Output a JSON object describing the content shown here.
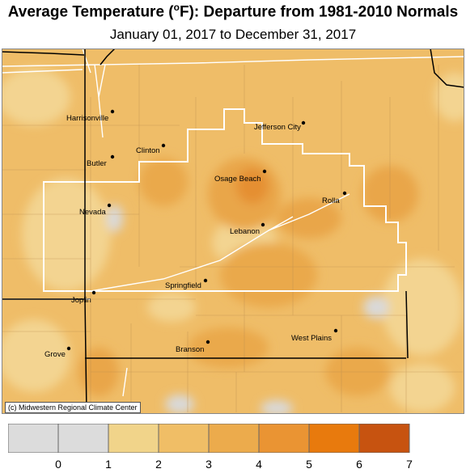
{
  "title_text": "Average Temperature (",
  "title_degree": "o",
  "title_rest": "F): Departure from 1981-2010 Normals",
  "subtitle": "January 01, 2017 to December 31, 2017",
  "copyright": "(c) Midwestern Regional Climate Center",
  "cities": [
    "Harrisonville",
    "Clinton",
    "Butler",
    "Jefferson City",
    "Osage Beach",
    "Nevada",
    "Rolla",
    "Lebanon",
    "Joplin",
    "Springfield",
    "Grove",
    "Branson",
    "West Plains"
  ],
  "legend": {
    "tick_labels": [
      "0",
      "1",
      "2",
      "3",
      "4",
      "5",
      "6",
      "7"
    ],
    "colors": [
      "#dcdcdc",
      "#dcdcdc",
      "#f1d48a",
      "#f0be66",
      "#ecab4c",
      "#ea9433",
      "#e87a0d",
      "#c75310"
    ]
  }
}
